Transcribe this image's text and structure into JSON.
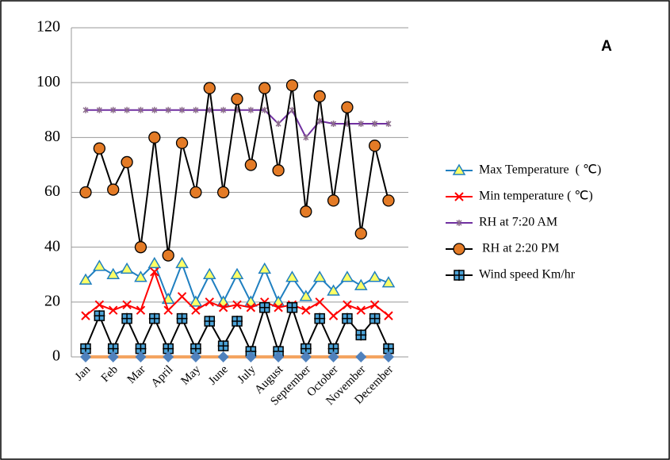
{
  "chart_data": {
    "type": "line",
    "annotation": "A",
    "categories": [
      "Jan",
      null,
      "Feb",
      null,
      "Mar",
      null,
      "April",
      null,
      "May",
      null,
      "June",
      null,
      "July",
      null,
      "August",
      null,
      "September",
      null,
      "October",
      null,
      "November",
      null,
      "December"
    ],
    "ylim": [
      0,
      120
    ],
    "yticks": [
      0,
      20,
      40,
      60,
      80,
      100,
      120
    ],
    "grid": true,
    "series": [
      {
        "name": "Max Temperature  ( ℃)",
        "color": "#1f7fc0",
        "marker": "triangle",
        "values": [
          28,
          33,
          30,
          32,
          29,
          34,
          21,
          34,
          20,
          30,
          20,
          30,
          20,
          32,
          20,
          29,
          22,
          29,
          24,
          29,
          26,
          29,
          27
        ]
      },
      {
        "name": "Min temperature ( ℃)",
        "color": "#ff0000",
        "marker": "x",
        "values": [
          15,
          19,
          17,
          19,
          17,
          31,
          17,
          22,
          17,
          20,
          18,
          19,
          18,
          20,
          18,
          19,
          17,
          20,
          15,
          19,
          17,
          19,
          15
        ]
      },
      {
        "name": "RH at 7:20 AM",
        "color": "#7030a0",
        "marker": "star",
        "values": [
          90,
          90,
          90,
          90,
          90,
          90,
          90,
          90,
          90,
          90,
          90,
          90,
          90,
          90,
          85,
          90,
          80,
          86,
          85,
          85,
          85,
          85,
          85
        ]
      },
      {
        "name": " RH at 2:20 PM",
        "color": "#000000",
        "marker": "circle",
        "values": [
          60,
          76,
          61,
          71,
          40,
          80,
          37,
          78,
          60,
          98,
          60,
          94,
          70,
          98,
          68,
          99,
          53,
          95,
          57,
          91,
          45,
          77,
          57
        ]
      },
      {
        "name": "Wind speed Km/hr",
        "color": "#000000",
        "marker": "plus",
        "values": [
          3,
          15,
          3,
          14,
          3,
          14,
          3,
          14,
          3,
          13,
          4,
          13,
          2,
          18,
          2,
          18,
          3,
          14,
          3,
          14,
          8,
          14,
          3
        ]
      },
      {
        "color": "#f4a460",
        "marker": "none",
        "values": [
          0,
          0,
          0,
          0,
          0,
          0,
          0,
          0,
          0,
          0,
          0,
          0,
          0,
          0,
          0,
          0,
          0,
          0,
          0,
          0,
          0,
          0,
          0
        ]
      },
      {
        "color": "#4f81bd",
        "marker": "diamond",
        "noline": true,
        "values": [
          0,
          null,
          0,
          null,
          0,
          null,
          0,
          null,
          0,
          null,
          0,
          null,
          0,
          null,
          0,
          null,
          0,
          null,
          0,
          null,
          0,
          null,
          0
        ]
      }
    ]
  }
}
